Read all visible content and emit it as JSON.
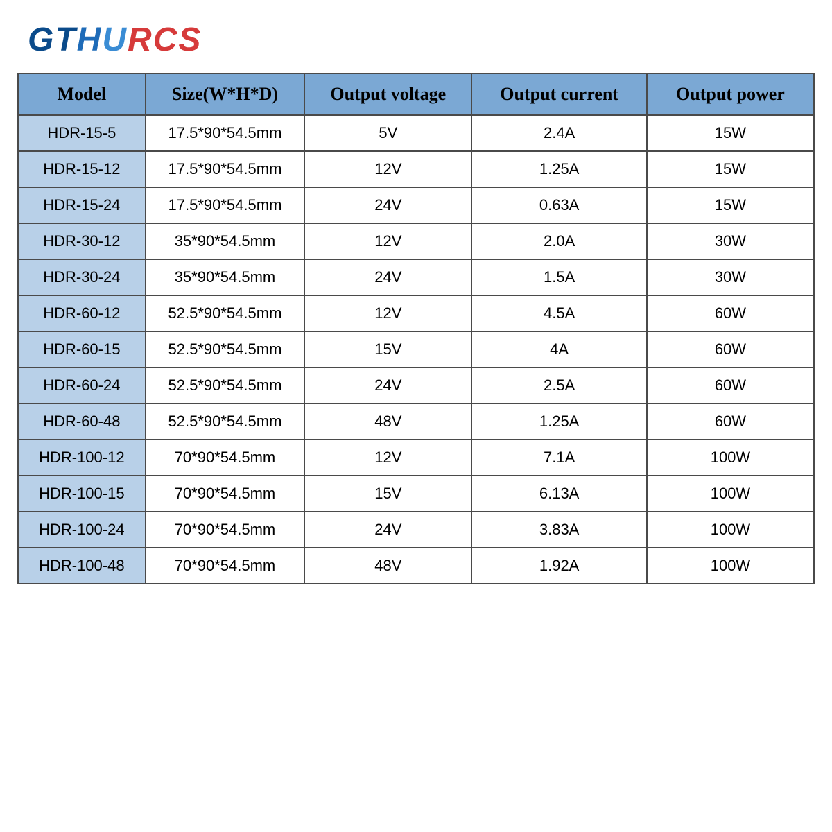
{
  "logo": {
    "text": "GTHURCS",
    "colors": {
      "g": "#0a4a8a",
      "t": "#0a4a8a",
      "h": "#1e6bb8",
      "u": "#3a8cd4",
      "r": "#d63a3a",
      "c": "#d63a3a",
      "s": "#d63a3a"
    }
  },
  "table": {
    "type": "table",
    "header_bg_color": "#7ba8d4",
    "model_cell_bg_color": "#b8d0e8",
    "border_color": "#4a4a4a",
    "background_color": "#ffffff",
    "header_fontsize": 26,
    "cell_fontsize": 22,
    "columns": [
      {
        "label": "Model",
        "width": "16%"
      },
      {
        "label": "Size(W*H*D)",
        "width": "20%"
      },
      {
        "label": "Output voltage",
        "width": "21%"
      },
      {
        "label": "Output current",
        "width": "22%"
      },
      {
        "label": "Output power",
        "width": "21%"
      }
    ],
    "rows": [
      {
        "model": "HDR-15-5",
        "size": "17.5*90*54.5mm",
        "voltage": "5V",
        "current": "2.4A",
        "power": "15W"
      },
      {
        "model": "HDR-15-12",
        "size": "17.5*90*54.5mm",
        "voltage": "12V",
        "current": "1.25A",
        "power": "15W"
      },
      {
        "model": "HDR-15-24",
        "size": "17.5*90*54.5mm",
        "voltage": "24V",
        "current": "0.63A",
        "power": "15W"
      },
      {
        "model": "HDR-30-12",
        "size": "35*90*54.5mm",
        "voltage": "12V",
        "current": "2.0A",
        "power": "30W"
      },
      {
        "model": "HDR-30-24",
        "size": "35*90*54.5mm",
        "voltage": "24V",
        "current": "1.5A",
        "power": "30W"
      },
      {
        "model": "HDR-60-12",
        "size": "52.5*90*54.5mm",
        "voltage": "12V",
        "current": "4.5A",
        "power": "60W"
      },
      {
        "model": "HDR-60-15",
        "size": "52.5*90*54.5mm",
        "voltage": "15V",
        "current": "4A",
        "power": "60W"
      },
      {
        "model": "HDR-60-24",
        "size": "52.5*90*54.5mm",
        "voltage": "24V",
        "current": "2.5A",
        "power": "60W"
      },
      {
        "model": "HDR-60-48",
        "size": "52.5*90*54.5mm",
        "voltage": "48V",
        "current": "1.25A",
        "power": "60W"
      },
      {
        "model": "HDR-100-12",
        "size": "70*90*54.5mm",
        "voltage": "12V",
        "current": "7.1A",
        "power": "100W"
      },
      {
        "model": "HDR-100-15",
        "size": "70*90*54.5mm",
        "voltage": "15V",
        "current": "6.13A",
        "power": "100W"
      },
      {
        "model": "HDR-100-24",
        "size": "70*90*54.5mm",
        "voltage": "24V",
        "current": "3.83A",
        "power": "100W"
      },
      {
        "model": "HDR-100-48",
        "size": "70*90*54.5mm",
        "voltage": "48V",
        "current": "1.92A",
        "power": "100W"
      }
    ]
  }
}
